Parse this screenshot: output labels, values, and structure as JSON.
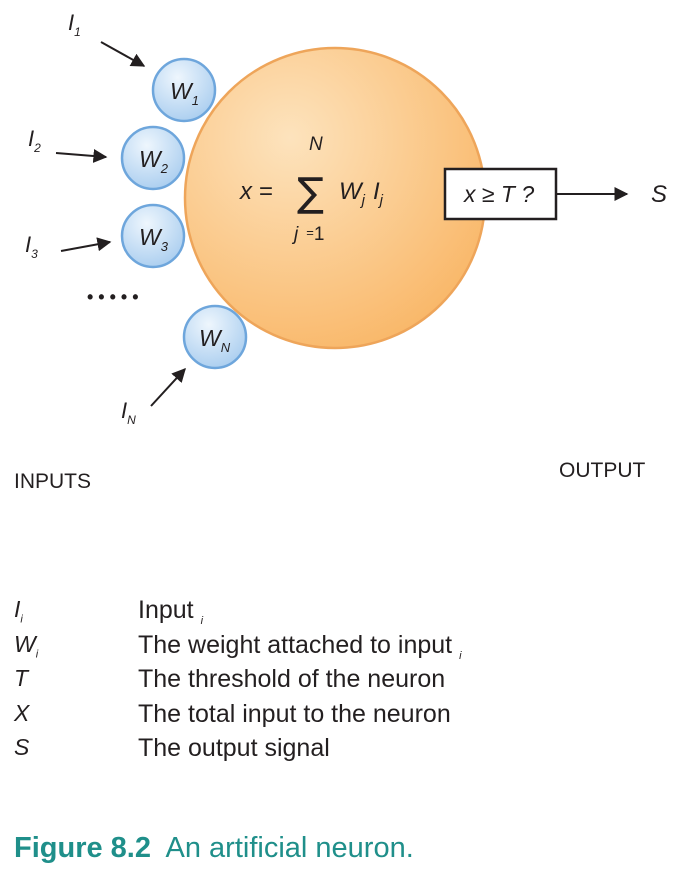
{
  "inputs": [
    {
      "symbol": "I",
      "sub": "1"
    },
    {
      "symbol": "I",
      "sub": "2"
    },
    {
      "symbol": "I",
      "sub": "3"
    },
    {
      "symbol": "I",
      "sub": "N"
    }
  ],
  "weights": [
    {
      "symbol": "W",
      "sub": "1"
    },
    {
      "symbol": "W",
      "sub": "2"
    },
    {
      "symbol": "W",
      "sub": "3"
    },
    {
      "symbol": "W",
      "sub": "N"
    }
  ],
  "ellipsis": "• • • • •",
  "formula": {
    "lhs": "x =",
    "sum_sign": "∑",
    "upper_limit": "N",
    "lower_index": "j",
    "lower_eq": "=",
    "lower_value": "1",
    "term_w": "W",
    "term_w_sub": "j",
    "term_i": "I",
    "term_i_sub": "j"
  },
  "threshold": "x ≥ T ?",
  "output_symbol": "S",
  "labels": {
    "inputs": "INPUTS",
    "output": "OUTPUT"
  },
  "legend": [
    {
      "symbol": "I",
      "sub": "i",
      "definition": "Input",
      "def_sub": "i"
    },
    {
      "symbol": "W",
      "sub": "i",
      "definition": "The weight attached to input",
      "def_sub": "i"
    },
    {
      "symbol": "T",
      "sub": "",
      "definition": "The threshold of the neuron",
      "def_sub": ""
    },
    {
      "symbol": "X",
      "sub": "",
      "definition": "The total input to the neuron",
      "def_sub": ""
    },
    {
      "symbol": "S",
      "sub": "",
      "definition": "The output signal",
      "def_sub": ""
    }
  ],
  "caption": {
    "number": "Figure 8.2",
    "text": "An artificial neuron."
  },
  "colors": {
    "neuron_fill_light": "#fde3bd",
    "neuron_fill_dark": "#f9b86a",
    "neuron_stroke": "#eea55a",
    "weight_fill_light": "#e4f0fb",
    "weight_fill_dark": "#a9cdef",
    "weight_stroke": "#6ea6dc",
    "caption": "#1f8f8a"
  }
}
